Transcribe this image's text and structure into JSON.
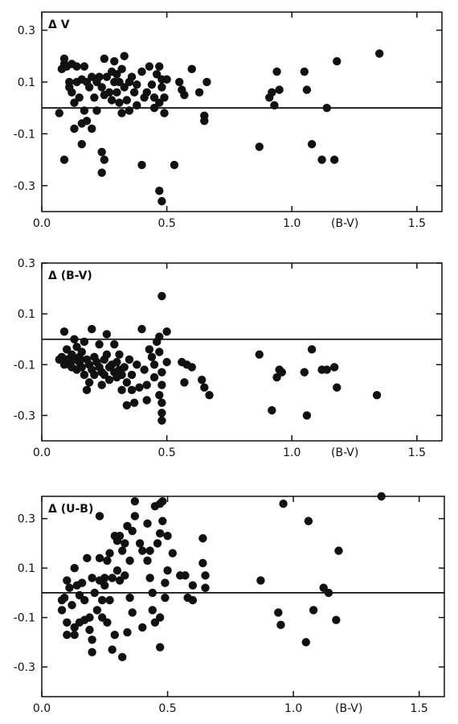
{
  "chart_data": [
    {
      "type": "scatter",
      "panel_label": "Δ V",
      "xlabel": "(B-V)",
      "xlim": [
        0.0,
        1.6
      ],
      "ylim": [
        -0.4,
        0.37
      ],
      "x_ticks": [
        0.0,
        0.5,
        1.0,
        1.5
      ],
      "x_tick_labels": [
        "0.0",
        "0.5",
        "1.0",
        "1.5"
      ],
      "y_ticks": [
        0.3,
        0.1,
        -0.1,
        -0.3
      ],
      "y_tick_labels": [
        "0.3",
        "0.1",
        "-0.1",
        "-0.3"
      ],
      "reference_line_y": 0.0,
      "points": [
        [
          0.07,
          -0.02
        ],
        [
          0.09,
          -0.2
        ],
        [
          0.08,
          0.15
        ],
        [
          0.09,
          0.17
        ],
        [
          0.09,
          0.19
        ],
        [
          0.1,
          0.16
        ],
        [
          0.11,
          0.1
        ],
        [
          0.11,
          0.08
        ],
        [
          0.12,
          0.17
        ],
        [
          0.12,
          0.06
        ],
        [
          0.13,
          0.02
        ],
        [
          0.13,
          -0.08
        ],
        [
          0.14,
          0.16
        ],
        [
          0.14,
          0.1
        ],
        [
          0.15,
          0.04
        ],
        [
          0.16,
          0.11
        ],
        [
          0.16,
          -0.06
        ],
        [
          0.16,
          -0.14
        ],
        [
          0.17,
          0.16
        ],
        [
          0.17,
          -0.01
        ],
        [
          0.18,
          -0.05
        ],
        [
          0.18,
          0.1
        ],
        [
          0.19,
          0.08
        ],
        [
          0.2,
          -0.08
        ],
        [
          0.2,
          0.12
        ],
        [
          0.21,
          0.04
        ],
        [
          0.22,
          0.1
        ],
        [
          0.22,
          -0.01
        ],
        [
          0.23,
          0.12
        ],
        [
          0.24,
          0.08
        ],
        [
          0.24,
          -0.17
        ],
        [
          0.24,
          -0.25
        ],
        [
          0.25,
          0.19
        ],
        [
          0.25,
          0.05
        ],
        [
          0.25,
          -0.2
        ],
        [
          0.26,
          0.12
        ],
        [
          0.27,
          0.06
        ],
        [
          0.28,
          0.14
        ],
        [
          0.28,
          0.03
        ],
        [
          0.29,
          0.18
        ],
        [
          0.29,
          0.1
        ],
        [
          0.3,
          0.06
        ],
        [
          0.3,
          0.13
        ],
        [
          0.31,
          0.1
        ],
        [
          0.31,
          0.02
        ],
        [
          0.32,
          0.15
        ],
        [
          0.32,
          -0.02
        ],
        [
          0.33,
          0.2
        ],
        [
          0.33,
          0.08
        ],
        [
          0.34,
          0.03
        ],
        [
          0.35,
          0.1
        ],
        [
          0.35,
          -0.01
        ],
        [
          0.36,
          0.12
        ],
        [
          0.37,
          0.06
        ],
        [
          0.38,
          0.09
        ],
        [
          0.38,
          0.01
        ],
        [
          0.4,
          0.14
        ],
        [
          0.4,
          -0.22
        ],
        [
          0.41,
          0.04
        ],
        [
          0.42,
          0.06
        ],
        [
          0.43,
          0.16
        ],
        [
          0.44,
          0.09
        ],
        [
          0.45,
          0.0
        ],
        [
          0.45,
          0.04
        ],
        [
          0.46,
          0.13
        ],
        [
          0.47,
          0.02
        ],
        [
          0.47,
          0.16
        ],
        [
          0.47,
          -0.32
        ],
        [
          0.48,
          0.08
        ],
        [
          0.48,
          0.11
        ],
        [
          0.48,
          -0.36
        ],
        [
          0.49,
          0.04
        ],
        [
          0.49,
          -0.02
        ],
        [
          0.5,
          0.11
        ],
        [
          0.53,
          -0.22
        ],
        [
          0.55,
          0.1
        ],
        [
          0.56,
          0.07
        ],
        [
          0.57,
          0.05
        ],
        [
          0.6,
          0.15
        ],
        [
          0.63,
          0.06
        ],
        [
          0.65,
          -0.03
        ],
        [
          0.65,
          -0.05
        ],
        [
          0.66,
          0.1
        ],
        [
          0.87,
          -0.15
        ],
        [
          0.91,
          0.04
        ],
        [
          0.92,
          0.06
        ],
        [
          0.93,
          0.01
        ],
        [
          0.94,
          0.14
        ],
        [
          0.95,
          0.07
        ],
        [
          1.05,
          0.14
        ],
        [
          1.06,
          0.07
        ],
        [
          1.08,
          -0.14
        ],
        [
          1.12,
          -0.2
        ],
        [
          1.14,
          0.0
        ],
        [
          1.17,
          -0.2
        ],
        [
          1.18,
          0.18
        ],
        [
          1.35,
          0.21
        ]
      ]
    },
    {
      "type": "scatter",
      "panel_label": "Δ (B-V)",
      "xlabel": "(B-V)",
      "xlim": [
        0.0,
        1.6
      ],
      "ylim": [
        -0.4,
        0.3
      ],
      "x_ticks": [
        0.0,
        0.5,
        1.0,
        1.5
      ],
      "x_tick_labels": [
        "0.0",
        "0.5",
        "1.0",
        "1.5"
      ],
      "y_ticks": [
        0.3,
        0.1,
        -0.1,
        -0.3
      ],
      "y_tick_labels": [
        "0.3",
        "0.1",
        "-0.1",
        "-0.3"
      ],
      "reference_line_y": 0.0,
      "points": [
        [
          0.07,
          -0.08
        ],
        [
          0.08,
          -0.07
        ],
        [
          0.09,
          0.03
        ],
        [
          0.09,
          -0.1
        ],
        [
          0.1,
          -0.04
        ],
        [
          0.1,
          -0.08
        ],
        [
          0.11,
          -0.09
        ],
        [
          0.11,
          -0.1
        ],
        [
          0.12,
          -0.06
        ],
        [
          0.12,
          -0.11
        ],
        [
          0.13,
          0.0
        ],
        [
          0.13,
          -0.08
        ],
        [
          0.14,
          -0.03
        ],
        [
          0.14,
          -0.12
        ],
        [
          0.15,
          -0.07
        ],
        [
          0.15,
          -0.09
        ],
        [
          0.16,
          -0.05
        ],
        [
          0.16,
          -0.11
        ],
        [
          0.17,
          -0.01
        ],
        [
          0.17,
          -0.14
        ],
        [
          0.18,
          -0.08
        ],
        [
          0.18,
          -0.2
        ],
        [
          0.19,
          -0.1
        ],
        [
          0.19,
          -0.17
        ],
        [
          0.2,
          0.04
        ],
        [
          0.2,
          -0.12
        ],
        [
          0.21,
          -0.07
        ],
        [
          0.21,
          -0.14
        ],
        [
          0.22,
          -0.09
        ],
        [
          0.23,
          -0.11
        ],
        [
          0.23,
          -0.02
        ],
        [
          0.24,
          -0.13
        ],
        [
          0.24,
          -0.18
        ],
        [
          0.25,
          -0.08
        ],
        [
          0.25,
          -0.14
        ],
        [
          0.26,
          0.02
        ],
        [
          0.26,
          -0.06
        ],
        [
          0.27,
          -0.11
        ],
        [
          0.27,
          -0.16
        ],
        [
          0.28,
          -0.1
        ],
        [
          0.29,
          -0.13
        ],
        [
          0.29,
          -0.02
        ],
        [
          0.3,
          -0.09
        ],
        [
          0.3,
          -0.15
        ],
        [
          0.31,
          -0.06
        ],
        [
          0.31,
          -0.12
        ],
        [
          0.32,
          -0.2
        ],
        [
          0.32,
          -0.14
        ],
        [
          0.33,
          -0.11
        ],
        [
          0.34,
          -0.17
        ],
        [
          0.34,
          -0.26
        ],
        [
          0.35,
          -0.08
        ],
        [
          0.36,
          -0.14
        ],
        [
          0.36,
          -0.2
        ],
        [
          0.37,
          -0.25
        ],
        [
          0.38,
          -0.1
        ],
        [
          0.39,
          -0.19
        ],
        [
          0.4,
          0.04
        ],
        [
          0.41,
          -0.12
        ],
        [
          0.42,
          -0.18
        ],
        [
          0.42,
          -0.24
        ],
        [
          0.43,
          -0.04
        ],
        [
          0.44,
          -0.07
        ],
        [
          0.45,
          -0.1
        ],
        [
          0.45,
          -0.15
        ],
        [
          0.46,
          -0.01
        ],
        [
          0.47,
          0.01
        ],
        [
          0.47,
          -0.05
        ],
        [
          0.47,
          -0.22
        ],
        [
          0.48,
          0.17
        ],
        [
          0.48,
          -0.32
        ],
        [
          0.48,
          -0.29
        ],
        [
          0.48,
          -0.25
        ],
        [
          0.48,
          -0.18
        ],
        [
          0.48,
          -0.13
        ],
        [
          0.5,
          0.03
        ],
        [
          0.5,
          -0.09
        ],
        [
          0.56,
          -0.09
        ],
        [
          0.57,
          -0.17
        ],
        [
          0.58,
          -0.1
        ],
        [
          0.6,
          -0.11
        ],
        [
          0.64,
          -0.16
        ],
        [
          0.65,
          -0.19
        ],
        [
          0.67,
          -0.22
        ],
        [
          0.87,
          -0.06
        ],
        [
          0.92,
          -0.28
        ],
        [
          0.94,
          -0.15
        ],
        [
          0.95,
          -0.12
        ],
        [
          0.96,
          -0.13
        ],
        [
          1.05,
          -0.13
        ],
        [
          1.06,
          -0.3
        ],
        [
          1.08,
          -0.04
        ],
        [
          1.12,
          -0.12
        ],
        [
          1.14,
          -0.12
        ],
        [
          1.17,
          -0.11
        ],
        [
          1.18,
          -0.19
        ],
        [
          1.34,
          -0.22
        ]
      ]
    },
    {
      "type": "scatter",
      "panel_label": "Δ (U-B)",
      "xlabel": "(B-V)",
      "xlim": [
        0.0,
        1.6
      ],
      "ylim": [
        -0.42,
        0.39
      ],
      "x_ticks": [
        0.0,
        0.5,
        1.0,
        1.5
      ],
      "x_tick_labels": [
        "0.0",
        "0.5",
        "1.0",
        "1.5"
      ],
      "y_ticks": [
        0.3,
        0.1,
        -0.1,
        -0.3
      ],
      "y_tick_labels": [
        "0.3",
        "0.1",
        "-0.1",
        "-0.3"
      ],
      "reference_line_y": 0.0,
      "points": [
        [
          0.08,
          -0.03
        ],
        [
          0.08,
          -0.07
        ],
        [
          0.09,
          -0.02
        ],
        [
          0.1,
          0.05
        ],
        [
          0.1,
          -0.12
        ],
        [
          0.1,
          -0.17
        ],
        [
          0.11,
          0.02
        ],
        [
          0.12,
          -0.05
        ],
        [
          0.13,
          0.1
        ],
        [
          0.13,
          -0.14
        ],
        [
          0.13,
          -0.17
        ],
        [
          0.14,
          0.03
        ],
        [
          0.15,
          -0.01
        ],
        [
          0.15,
          -0.12
        ],
        [
          0.16,
          0.04
        ],
        [
          0.17,
          -0.03
        ],
        [
          0.17,
          -0.11
        ],
        [
          0.18,
          0.14
        ],
        [
          0.19,
          -0.1
        ],
        [
          0.19,
          -0.15
        ],
        [
          0.2,
          0.06
        ],
        [
          0.2,
          -0.24
        ],
        [
          0.2,
          -0.19
        ],
        [
          0.21,
          0.0
        ],
        [
          0.22,
          -0.07
        ],
        [
          0.23,
          0.31
        ],
        [
          0.23,
          0.14
        ],
        [
          0.23,
          0.05
        ],
        [
          0.24,
          -0.1
        ],
        [
          0.24,
          -0.03
        ],
        [
          0.25,
          0.03
        ],
        [
          0.25,
          0.06
        ],
        [
          0.26,
          0.13
        ],
        [
          0.26,
          -0.12
        ],
        [
          0.27,
          -0.03
        ],
        [
          0.27,
          0.16
        ],
        [
          0.28,
          0.06
        ],
        [
          0.28,
          -0.23
        ],
        [
          0.29,
          0.23
        ],
        [
          0.29,
          -0.17
        ],
        [
          0.3,
          0.21
        ],
        [
          0.3,
          0.09
        ],
        [
          0.31,
          0.23
        ],
        [
          0.31,
          0.05
        ],
        [
          0.32,
          0.17
        ],
        [
          0.32,
          -0.26
        ],
        [
          0.33,
          0.2
        ],
        [
          0.33,
          0.07
        ],
        [
          0.34,
          0.27
        ],
        [
          0.34,
          -0.16
        ],
        [
          0.35,
          0.13
        ],
        [
          0.35,
          -0.02
        ],
        [
          0.36,
          0.25
        ],
        [
          0.36,
          -0.08
        ],
        [
          0.37,
          0.37
        ],
        [
          0.37,
          0.31
        ],
        [
          0.39,
          0.2
        ],
        [
          0.4,
          0.17
        ],
        [
          0.4,
          -0.14
        ],
        [
          0.42,
          0.13
        ],
        [
          0.42,
          0.28
        ],
        [
          0.43,
          0.17
        ],
        [
          0.43,
          0.06
        ],
        [
          0.44,
          0.0
        ],
        [
          0.44,
          -0.07
        ],
        [
          0.45,
          0.35
        ],
        [
          0.45,
          -0.12
        ],
        [
          0.46,
          0.2
        ],
        [
          0.47,
          0.24
        ],
        [
          0.47,
          0.36
        ],
        [
          0.47,
          -0.1
        ],
        [
          0.47,
          -0.22
        ],
        [
          0.48,
          0.29
        ],
        [
          0.48,
          0.37
        ],
        [
          0.49,
          0.04
        ],
        [
          0.49,
          -0.02
        ],
        [
          0.5,
          0.09
        ],
        [
          0.5,
          0.23
        ],
        [
          0.52,
          0.16
        ],
        [
          0.55,
          0.07
        ],
        [
          0.57,
          0.07
        ],
        [
          0.58,
          -0.02
        ],
        [
          0.6,
          0.03
        ],
        [
          0.6,
          -0.03
        ],
        [
          0.64,
          0.22
        ],
        [
          0.64,
          0.12
        ],
        [
          0.65,
          0.02
        ],
        [
          0.65,
          0.07
        ],
        [
          0.87,
          0.05
        ],
        [
          0.94,
          -0.08
        ],
        [
          0.95,
          -0.13
        ],
        [
          0.96,
          0.36
        ],
        [
          1.05,
          -0.2
        ],
        [
          1.06,
          0.29
        ],
        [
          1.08,
          -0.07
        ],
        [
          1.12,
          0.02
        ],
        [
          1.14,
          0.0
        ],
        [
          1.17,
          -0.11
        ],
        [
          1.18,
          0.17
        ],
        [
          1.35,
          0.39
        ]
      ]
    }
  ]
}
